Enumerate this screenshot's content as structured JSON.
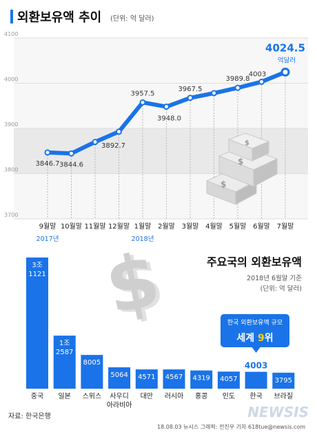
{
  "title": "외환보유액 추이",
  "unit_note": "(단위: 억 달러)",
  "chart_data": [
    {
      "type": "line",
      "title": "외환보유액 추이",
      "unit": "(단위: 억 달러)",
      "categories": [
        "9월말",
        "10월말",
        "11월말",
        "12월말",
        "1월말",
        "2월말",
        "3월말",
        "4월말",
        "5월말",
        "6월말",
        "7월말"
      ],
      "year_labels": [
        {
          "index": 0,
          "label": "2017년"
        },
        {
          "index": 4,
          "label": "2018년"
        }
      ],
      "values": [
        3846.7,
        3844.6,
        3870.0,
        3892.7,
        3957.5,
        3948.0,
        3967.5,
        3978.0,
        3989.8,
        4003.0,
        4024.5
      ],
      "value_labels": [
        {
          "index": 0,
          "label": "3846.7"
        },
        {
          "index": 1,
          "label": "3844.6"
        },
        {
          "index": 3,
          "label": "3892.7"
        },
        {
          "index": 4,
          "label": "3957.5"
        },
        {
          "index": 5,
          "label": "3948.0"
        },
        {
          "index": 6,
          "label": "3967.5"
        },
        {
          "index": 8,
          "label": "3989.8"
        },
        {
          "index": 9,
          "label": "4003"
        }
      ],
      "highlight": {
        "index": 10,
        "label": "4024.5",
        "unit": "억달러"
      },
      "yticks": [
        3700,
        3800,
        3900,
        4000,
        4100
      ],
      "ylim": [
        3700,
        4100
      ],
      "line_color": "#1a73e8"
    },
    {
      "type": "bar",
      "title": "주요국의 외환보유액",
      "subtitle": "2018년 6월말 기준",
      "unit": "(단위: 억 달러)",
      "categories": [
        "중국",
        "일본",
        "스위스",
        "사우디 아라비아",
        "대만",
        "러시아",
        "홍콩",
        "인도",
        "한국",
        "브라질"
      ],
      "values": [
        31121,
        12587,
        8005,
        5064,
        4571,
        4567,
        4319,
        4057,
        4003,
        3795
      ],
      "value_labels": [
        "3조 1121",
        "1조 2587",
        "8005",
        "5064",
        "4571",
        "4567",
        "4319",
        "4057",
        "4003",
        "3795"
      ],
      "highlight_index": 8,
      "callout_line1": "한국 외환보유액 규모",
      "callout_line2_prefix": "세계 ",
      "callout_line2_rank": "9",
      "callout_line2_suffix": "위",
      "bar_color": "#1a73e8",
      "accent_color": "#ffd400"
    }
  ],
  "source": "자료: 한국은행",
  "footer": "18.08.03 뉴시스 그래픽: 전진우 기자 618tue@newsis.com",
  "logo": "NEWSIS"
}
